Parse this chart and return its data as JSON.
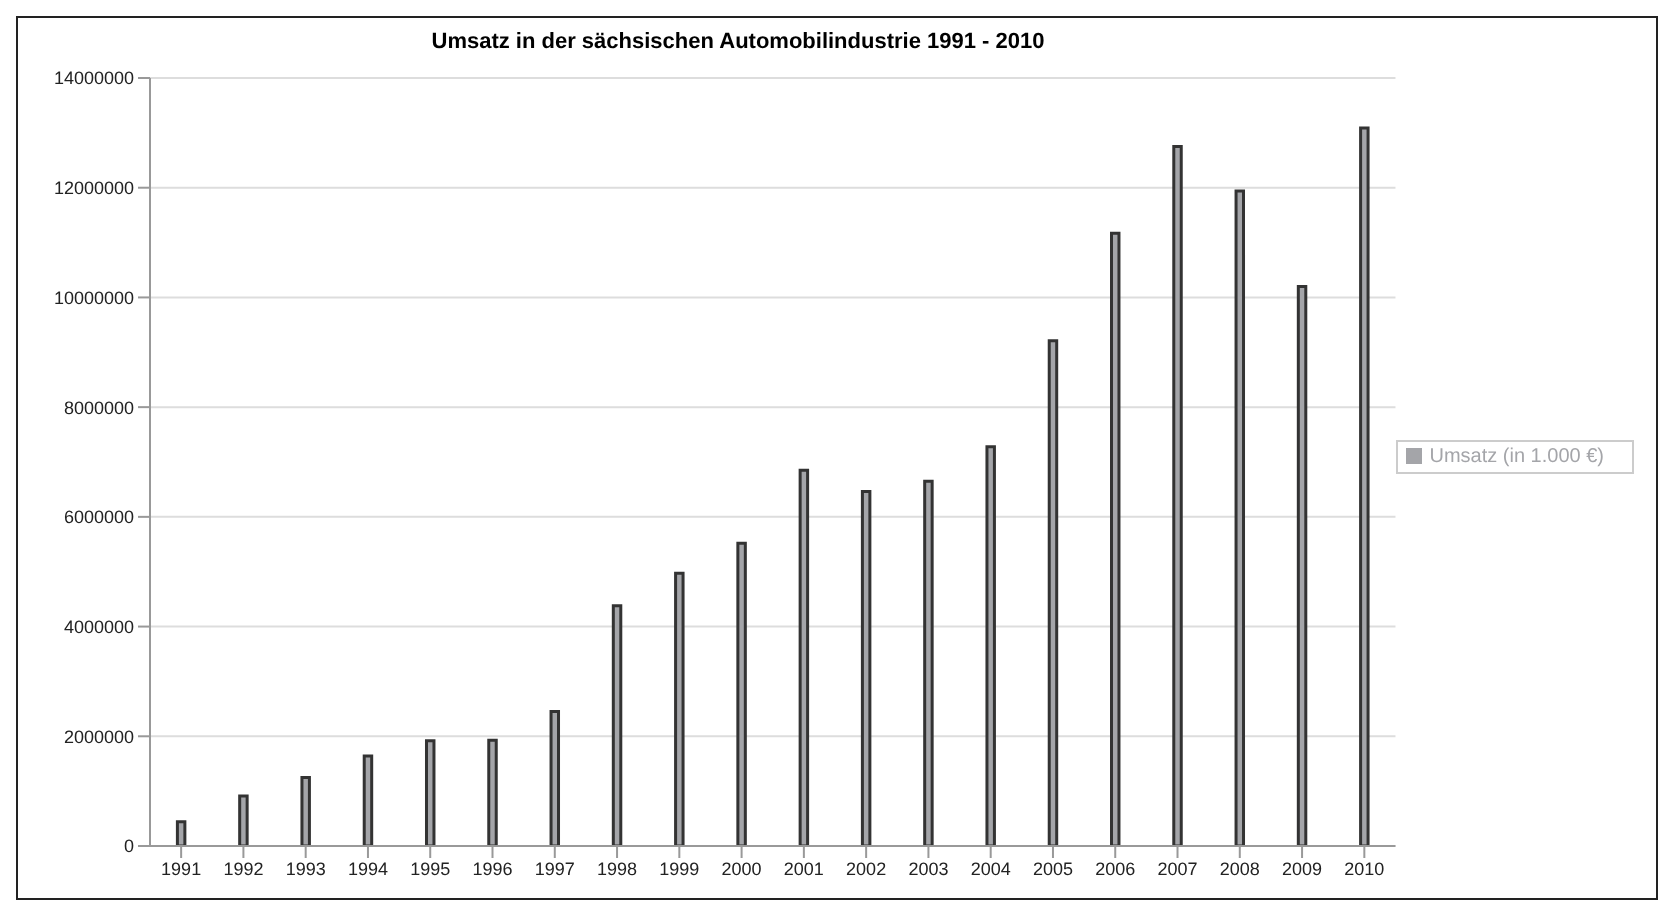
{
  "chart_data": {
    "type": "bar",
    "title": "Umsatz in der sächsischen Automobilindustrie 1991 - 2010",
    "categories": [
      "1991",
      "1992",
      "1993",
      "1994",
      "1995",
      "1996",
      "1997",
      "1998",
      "1999",
      "2000",
      "2001",
      "2002",
      "2003",
      "2004",
      "2005",
      "2006",
      "2007",
      "2008",
      "2009",
      "2010"
    ],
    "series": [
      {
        "name": "Umsatz (in 1.000 €)",
        "color": "#a4a5a9",
        "values": [
          440000,
          910000,
          1250000,
          1640000,
          1920000,
          1930000,
          2450000,
          4380000,
          4970000,
          5520000,
          6850000,
          6460000,
          6650000,
          7280000,
          9210000,
          11170000,
          12750000,
          11940000,
          10200000,
          13090000
        ]
      }
    ],
    "ylim": [
      0,
      14000000
    ],
    "yticks": [
      0,
      2000000,
      4000000,
      6000000,
      8000000,
      10000000,
      12000000,
      14000000
    ],
    "grid": "y",
    "legend": "right"
  }
}
